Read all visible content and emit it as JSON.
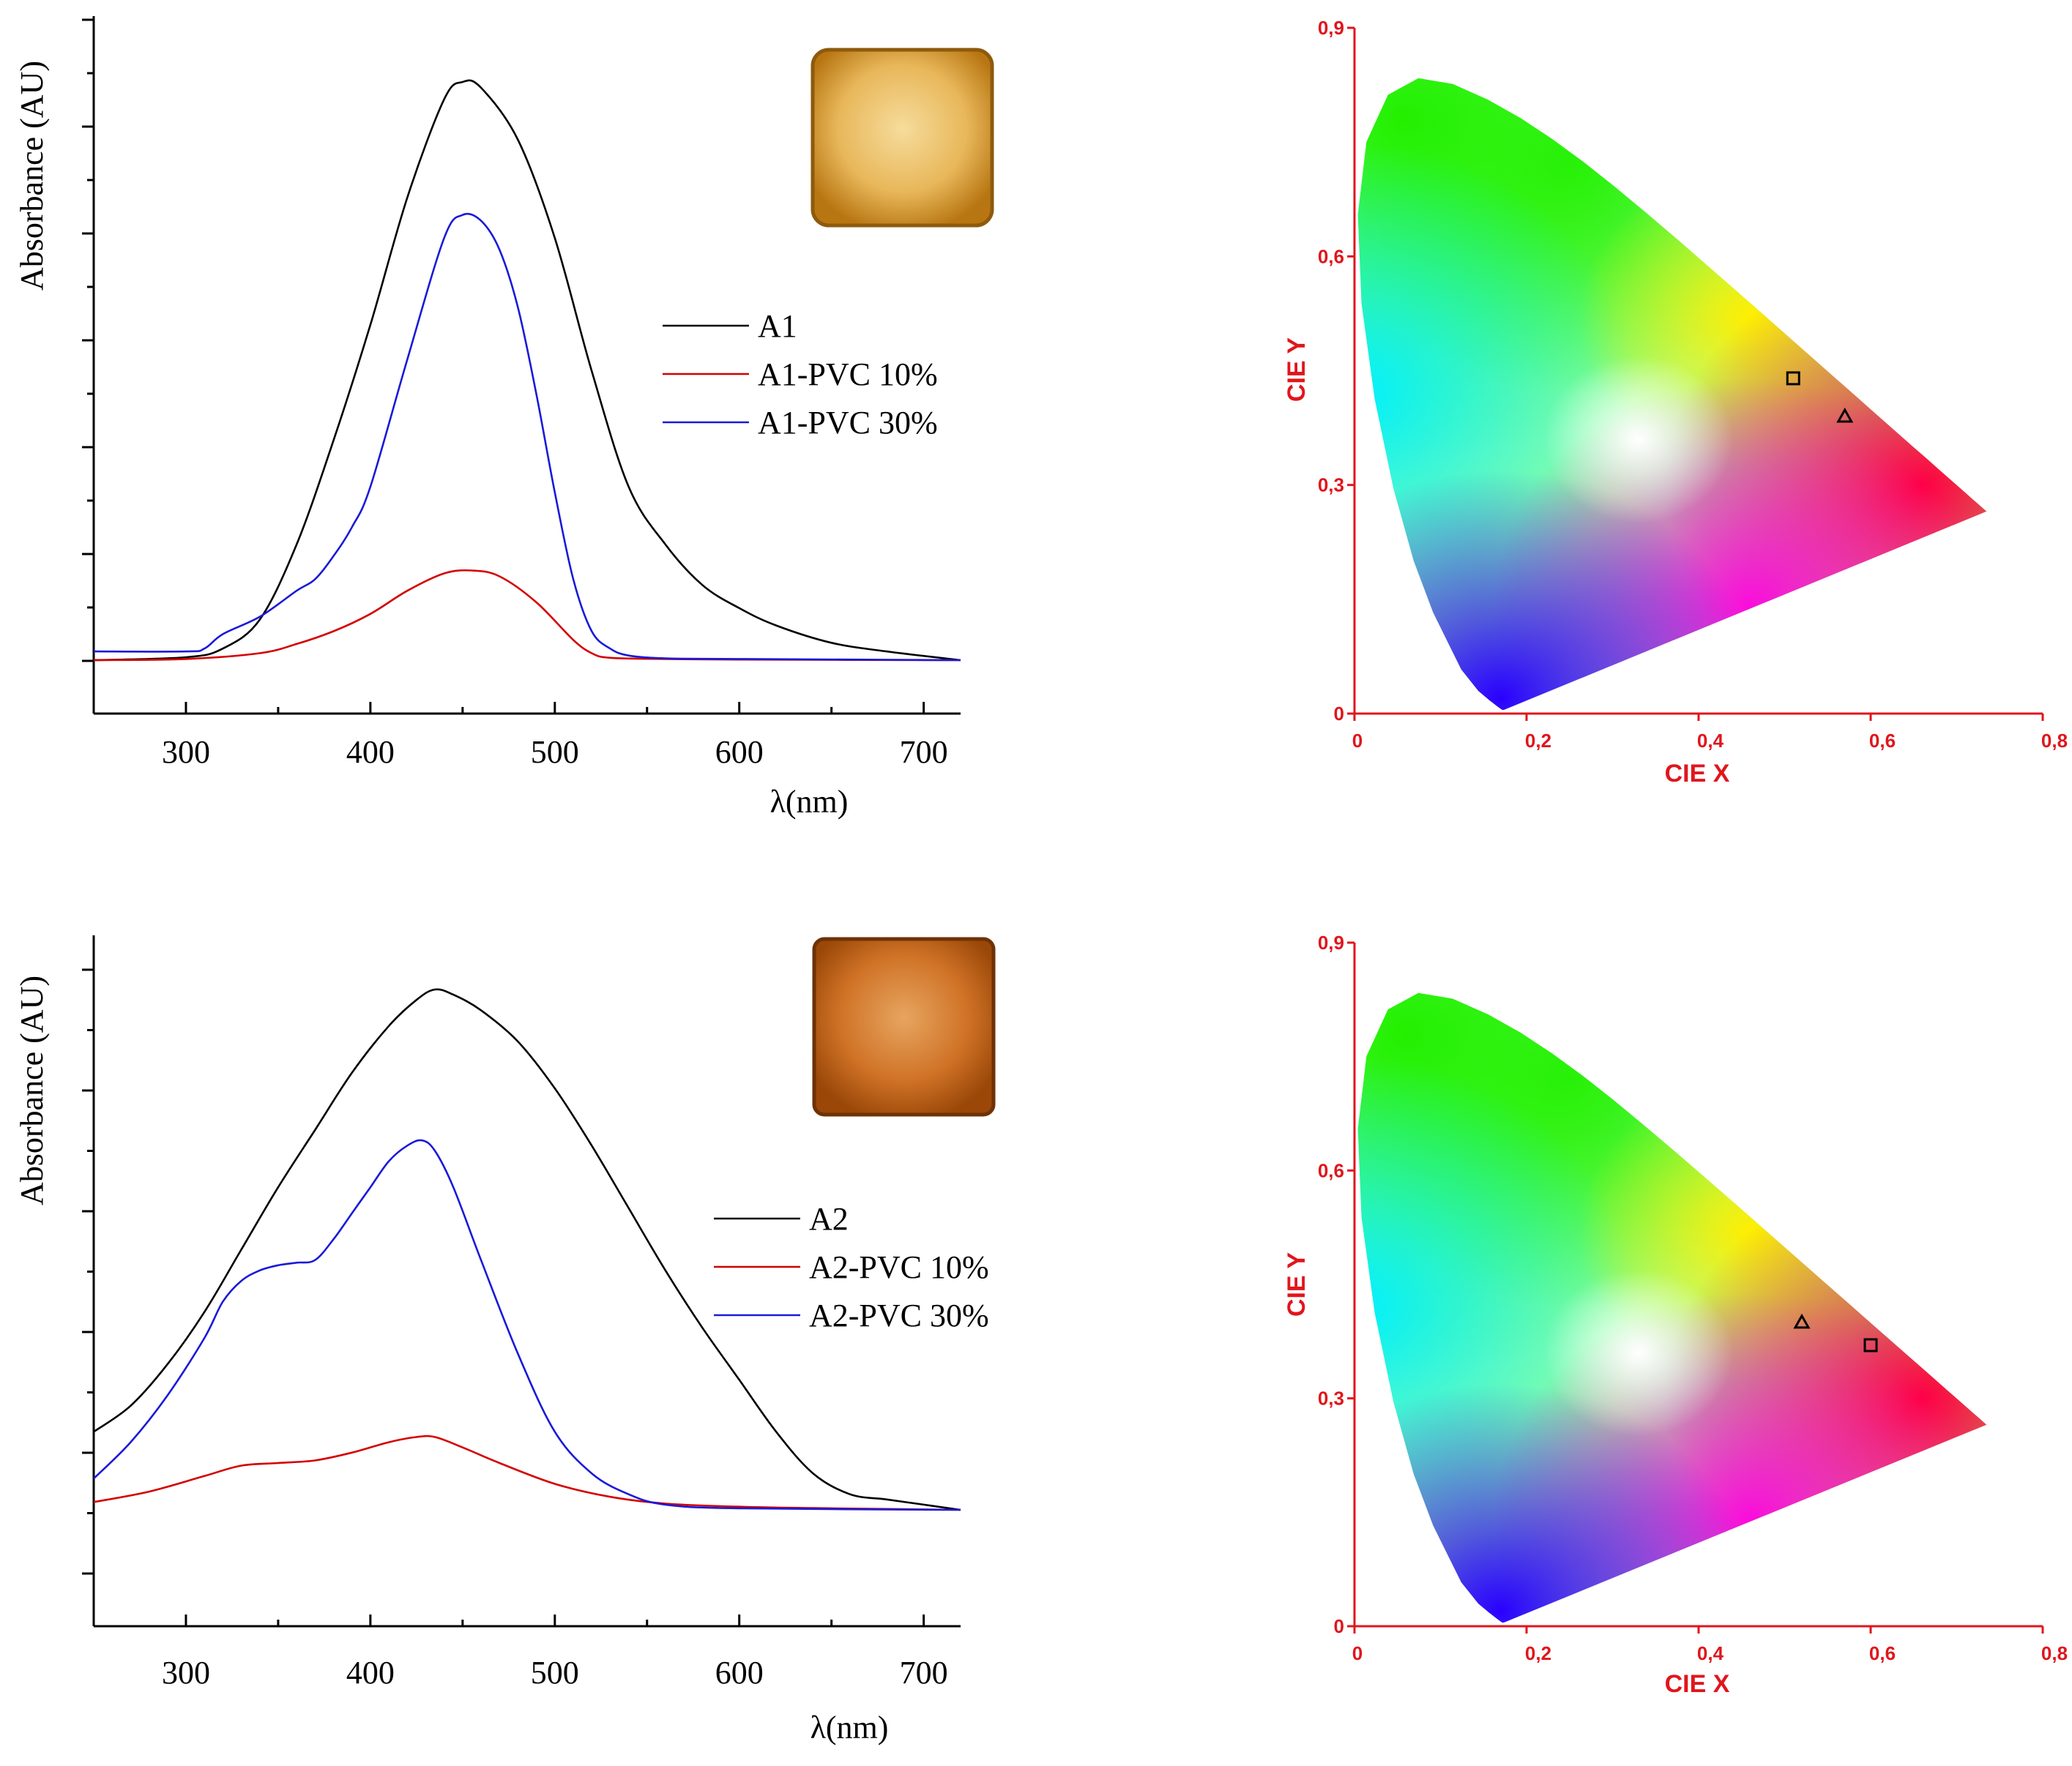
{
  "colors": {
    "black_series": "#000000",
    "red_series": "#d40000",
    "blue_series": "#1a1ad9",
    "cie_axis": "#e0161c",
    "sample_a1": "#d69a2e",
    "sample_a2": "#c96a1e"
  },
  "chart_data": [
    {
      "id": "absorbance-a1",
      "type": "line",
      "xlabel": "λ(nm)",
      "ylabel": "Absorbance (AU)",
      "xlim": [
        250,
        720
      ],
      "ylim": [
        -0.1,
        1.1
      ],
      "x_ticks": [
        300,
        400,
        500,
        600,
        700
      ],
      "x_tick_labels": [
        "300",
        "400",
        "500",
        "600",
        "700"
      ],
      "inset_image": "sample-film-photo",
      "legend": {
        "placement": "center-right",
        "entries": [
          "A1",
          "A1-PVC 10%",
          "A1-PVC 30%"
        ]
      },
      "series": [
        {
          "name": "A1",
          "color": "#000000",
          "x": [
            250,
            300,
            320,
            340,
            360,
            380,
            400,
            420,
            440,
            450,
            460,
            480,
            500,
            520,
            540,
            560,
            580,
            600,
            620,
            650,
            680,
            720
          ],
          "y": [
            0.0,
            0.005,
            0.02,
            0.07,
            0.2,
            0.38,
            0.58,
            0.8,
            0.97,
            1.0,
            0.99,
            0.9,
            0.73,
            0.5,
            0.3,
            0.2,
            0.13,
            0.09,
            0.06,
            0.03,
            0.015,
            0.0
          ]
        },
        {
          "name": "A1-PVC 10%",
          "color": "#d40000",
          "x": [
            250,
            300,
            340,
            360,
            380,
            400,
            420,
            440,
            455,
            470,
            490,
            510,
            520,
            530,
            560,
            600,
            720
          ],
          "y": [
            0.0,
            0.002,
            0.012,
            0.028,
            0.05,
            0.08,
            0.12,
            0.15,
            0.155,
            0.145,
            0.1,
            0.035,
            0.012,
            0.004,
            0.002,
            0.001,
            0.0
          ]
        },
        {
          "name": "A1-PVC 30%",
          "color": "#1a1ad9",
          "x": [
            250,
            300,
            310,
            320,
            340,
            360,
            370,
            380,
            390,
            400,
            420,
            440,
            450,
            460,
            470,
            480,
            490,
            500,
            510,
            520,
            530,
            540,
            560,
            600,
            720
          ],
          "y": [
            0.015,
            0.015,
            0.02,
            0.045,
            0.075,
            0.12,
            0.14,
            0.18,
            0.23,
            0.3,
            0.52,
            0.73,
            0.77,
            0.76,
            0.71,
            0.61,
            0.46,
            0.29,
            0.14,
            0.05,
            0.02,
            0.008,
            0.003,
            0.002,
            0.0
          ]
        }
      ]
    },
    {
      "id": "absorbance-a2",
      "type": "line",
      "xlabel": "λ(nm)",
      "ylabel": "Absorbance (AU)",
      "xlim": [
        250,
        720
      ],
      "ylim": [
        -0.1,
        1.05
      ],
      "x_ticks": [
        300,
        400,
        500,
        600,
        700
      ],
      "x_tick_labels": [
        "300",
        "400",
        "500",
        "600",
        "700"
      ],
      "inset_image": "sample-film-photo",
      "legend": {
        "placement": "center-right",
        "entries": [
          "A2",
          "A2-PVC 10%",
          "A2-PVC 30%"
        ]
      },
      "series": [
        {
          "name": "A2",
          "color": "#000000",
          "x": [
            250,
            270,
            290,
            310,
            330,
            350,
            370,
            390,
            410,
            425,
            435,
            445,
            460,
            480,
            500,
            520,
            540,
            560,
            580,
            600,
            620,
            640,
            660,
            680,
            700,
            720
          ],
          "y": [
            0.15,
            0.2,
            0.28,
            0.38,
            0.5,
            0.62,
            0.73,
            0.84,
            0.93,
            0.98,
            1.0,
            0.99,
            0.96,
            0.9,
            0.81,
            0.7,
            0.58,
            0.46,
            0.35,
            0.25,
            0.15,
            0.07,
            0.03,
            0.02,
            0.01,
            0.0
          ]
        },
        {
          "name": "A2-PVC 10%",
          "color": "#d40000",
          "x": [
            250,
            280,
            310,
            330,
            350,
            370,
            390,
            410,
            425,
            435,
            450,
            470,
            500,
            530,
            560,
            600,
            650,
            720
          ],
          "y": [
            0.015,
            0.035,
            0.065,
            0.085,
            0.09,
            0.095,
            0.11,
            0.13,
            0.14,
            0.14,
            0.12,
            0.09,
            0.05,
            0.025,
            0.012,
            0.006,
            0.003,
            0.0
          ]
        },
        {
          "name": "A2-PVC 30%",
          "color": "#1a1ad9",
          "x": [
            250,
            270,
            290,
            310,
            320,
            330,
            340,
            350,
            360,
            370,
            380,
            390,
            400,
            410,
            420,
            428,
            435,
            445,
            460,
            480,
            500,
            520,
            540,
            560,
            600,
            720
          ],
          "y": [
            0.06,
            0.13,
            0.22,
            0.33,
            0.4,
            0.44,
            0.46,
            0.47,
            0.475,
            0.48,
            0.52,
            0.57,
            0.62,
            0.67,
            0.7,
            0.71,
            0.69,
            0.62,
            0.48,
            0.3,
            0.15,
            0.07,
            0.03,
            0.01,
            0.003,
            0.0
          ]
        }
      ]
    },
    {
      "id": "cie-top",
      "type": "scatter",
      "xlabel": "CIE X",
      "ylabel": "CIE Y",
      "xlim": [
        0,
        0.8
      ],
      "ylim": [
        0,
        0.9
      ],
      "x_ticks": [
        0,
        0.2,
        0.4,
        0.6,
        0.8
      ],
      "x_tick_labels": [
        "0",
        "0,2",
        "0,4",
        "0,6",
        "0,8"
      ],
      "y_ticks": [
        0,
        0.3,
        0.6,
        0.9
      ],
      "y_tick_labels": [
        "0",
        "0,3",
        "0,6",
        "0,9"
      ],
      "background": "CIE 1931 chromaticity diagram",
      "points": [
        {
          "marker": "square",
          "x": 0.51,
          "y": 0.44
        },
        {
          "marker": "triangle",
          "x": 0.57,
          "y": 0.39
        }
      ]
    },
    {
      "id": "cie-bottom",
      "type": "scatter",
      "xlabel": "CIE X",
      "ylabel": "CIE Y",
      "xlim": [
        0,
        0.8
      ],
      "ylim": [
        0,
        0.9
      ],
      "x_ticks": [
        0,
        0.2,
        0.4,
        0.6,
        0.8
      ],
      "x_tick_labels": [
        "0",
        "0,2",
        "0,4",
        "0,6",
        "0,8"
      ],
      "y_ticks": [
        0,
        0.3,
        0.6,
        0.9
      ],
      "y_tick_labels": [
        "0",
        "0,3",
        "0,6",
        "0,9"
      ],
      "background": "CIE 1931 chromaticity diagram",
      "points": [
        {
          "marker": "triangle",
          "x": 0.52,
          "y": 0.4
        },
        {
          "marker": "square",
          "x": 0.6,
          "y": 0.37
        }
      ]
    }
  ]
}
